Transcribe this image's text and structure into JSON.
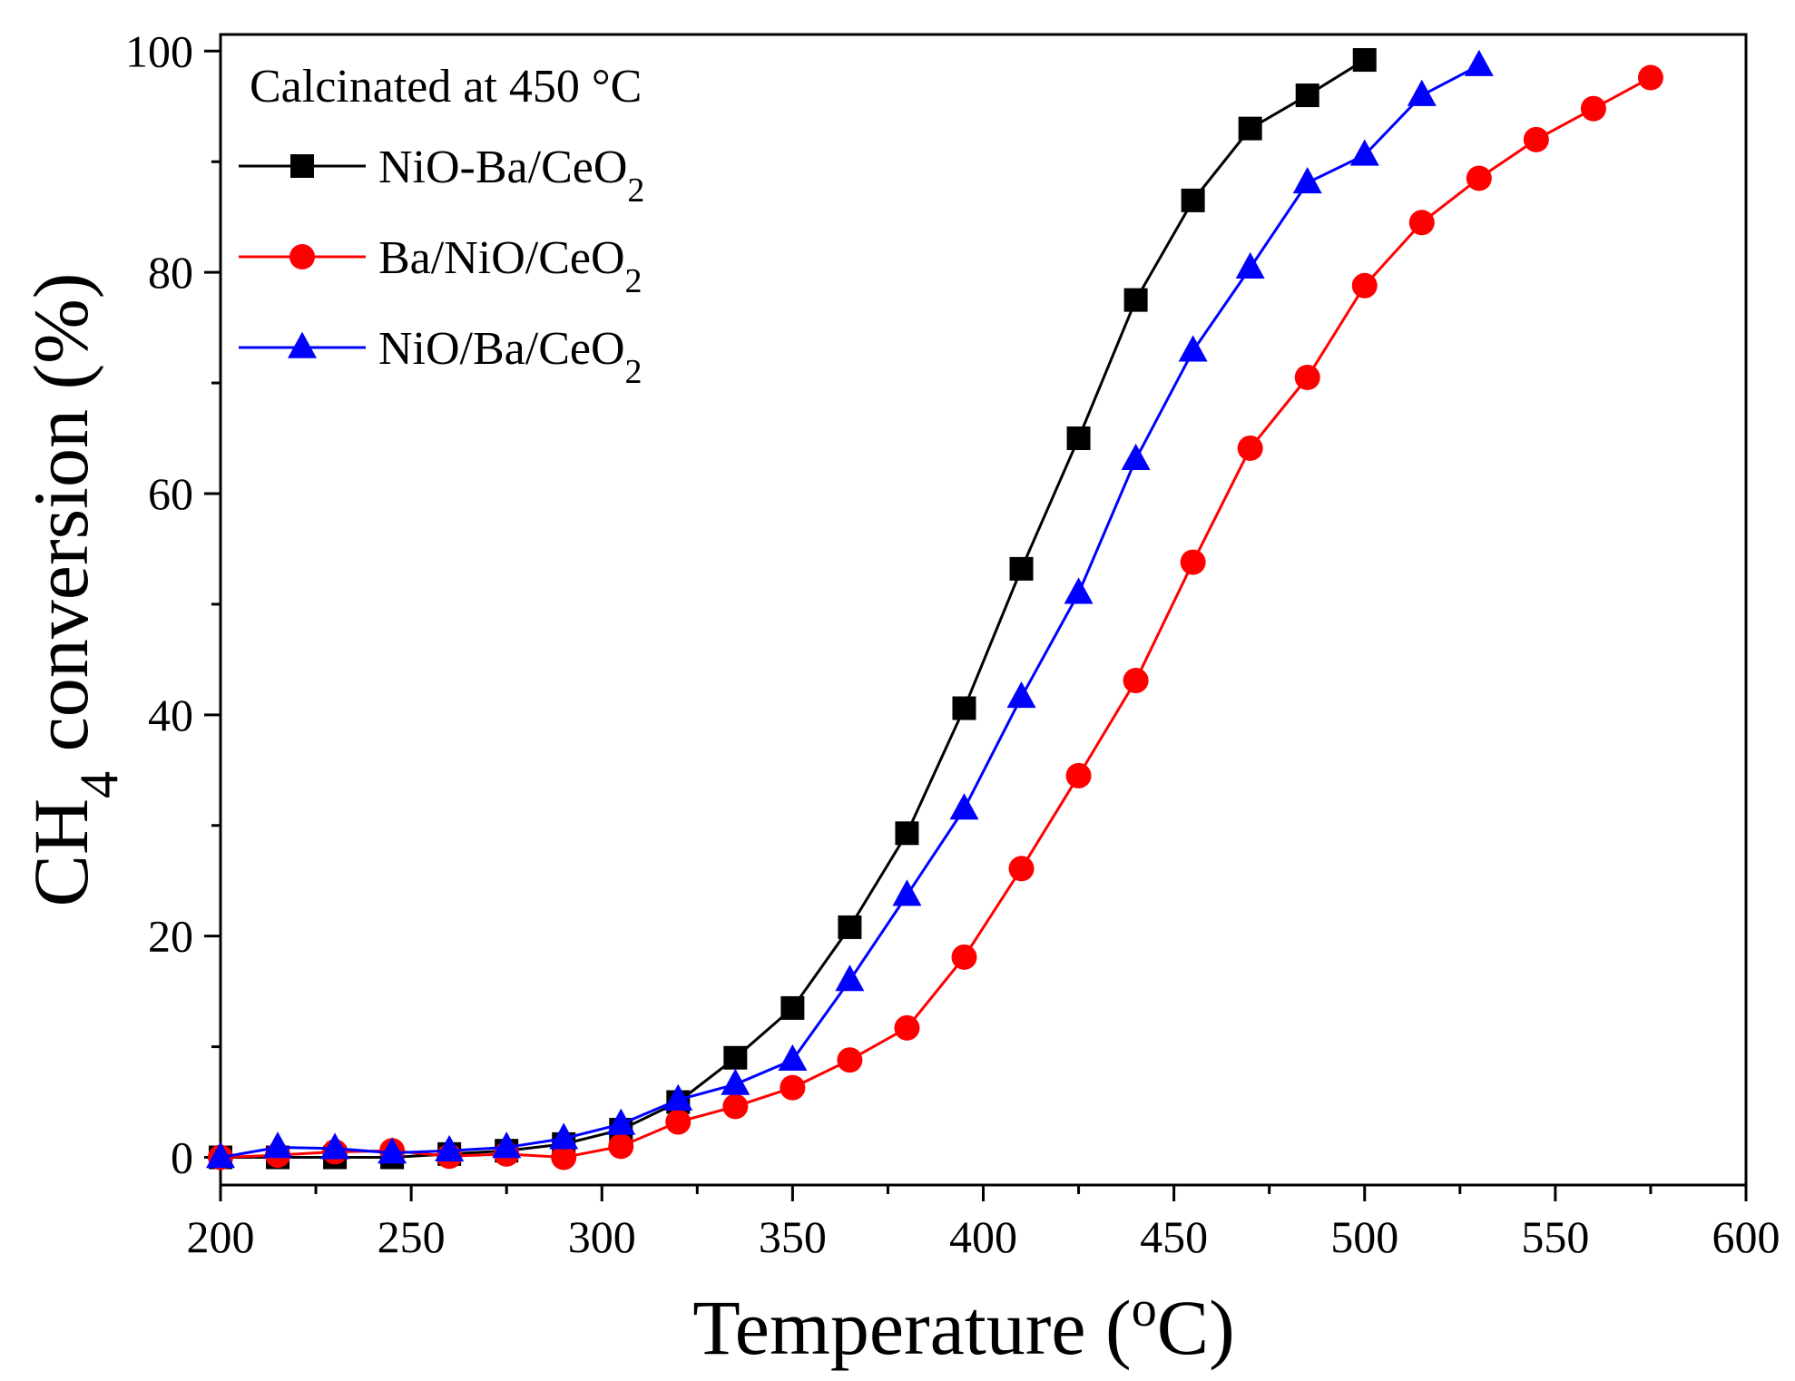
{
  "chart_data": {
    "type": "line",
    "annotation": "Calcinated at 450 °C",
    "xlabel": {
      "main": "Temperature (",
      "sup": "o",
      "end": "C)"
    },
    "ylabel": {
      "pre": "CH",
      "sub": "4",
      "post": " conversion (%)"
    },
    "xlim": [
      200,
      600
    ],
    "ylim": [
      -2.5,
      101.5
    ],
    "xticks": [
      200,
      250,
      300,
      350,
      400,
      450,
      500,
      550,
      600
    ],
    "yticks": [
      0,
      20,
      40,
      60,
      80,
      100
    ],
    "grid": false,
    "legend_position": "top-left",
    "series": [
      {
        "name": "NiO-Ba/CeO",
        "name_sub": "2",
        "color": "#000000",
        "marker": "square",
        "x": [
          200,
          215,
          230,
          245,
          260,
          275,
          290,
          305,
          320,
          335,
          350,
          365,
          380,
          395,
          410,
          425,
          440,
          455,
          470,
          485,
          500
        ],
        "y": [
          0,
          0,
          0,
          0,
          0.3,
          0.6,
          1.2,
          2.5,
          5,
          9,
          13.5,
          20.8,
          29.3,
          40.6,
          53.2,
          65,
          77.5,
          86.5,
          93,
          96,
          99.2
        ]
      },
      {
        "name": "Ba/NiO/CeO",
        "name_sub": "2",
        "color": "#ff0000",
        "marker": "circle",
        "x": [
          200,
          215,
          230,
          245,
          260,
          275,
          290,
          305,
          320,
          335,
          350,
          365,
          380,
          395,
          410,
          425,
          440,
          455,
          470,
          485,
          500,
          515,
          530,
          545,
          560,
          575
        ],
        "y": [
          0,
          0.2,
          0.5,
          0.6,
          0.1,
          0.3,
          0,
          1,
          3.2,
          4.6,
          6.3,
          8.8,
          11.7,
          18.1,
          26.1,
          34.5,
          43.1,
          53.8,
          64.1,
          70.5,
          78.8,
          84.5,
          88.5,
          92,
          94.8,
          97.6
        ]
      },
      {
        "name": "NiO/Ba/CeO",
        "name_sub": "2",
        "color": "#0000ff",
        "marker": "triangle",
        "x": [
          200,
          215,
          230,
          245,
          260,
          275,
          290,
          305,
          320,
          335,
          350,
          365,
          380,
          395,
          410,
          425,
          440,
          455,
          470,
          485,
          500,
          515,
          530
        ],
        "y": [
          0,
          0.9,
          0.8,
          0.4,
          0.6,
          0.9,
          1.7,
          3,
          5.2,
          6.6,
          8.8,
          16,
          23.7,
          31.5,
          41.6,
          51,
          63.1,
          72.9,
          80.4,
          88.1,
          90.6,
          96,
          98.7
        ]
      }
    ]
  }
}
